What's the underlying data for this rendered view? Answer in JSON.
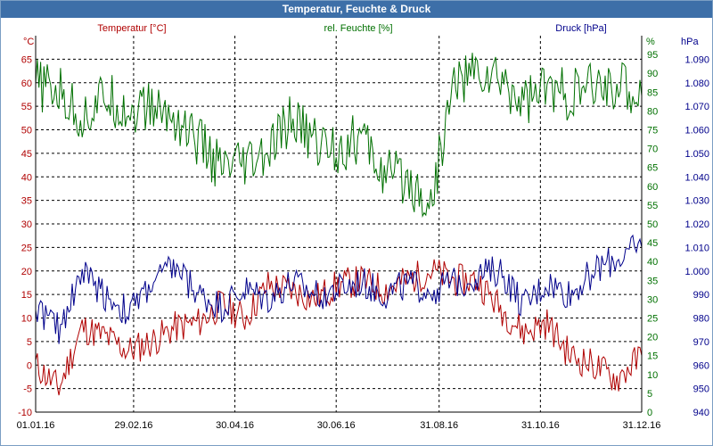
{
  "window": {
    "title": "Temperatur, Feuchte & Druck"
  },
  "colors": {
    "temperature": "#b00000",
    "humidity": "#007000",
    "pressure": "#00008b",
    "grid": "#000000",
    "titlebar": "#3d6fa8"
  },
  "chart_data": {
    "type": "line",
    "title": "Temperatur, Feuchte & Druck",
    "grid": true,
    "x_ticks": [
      "01.01.16",
      "29.02.16",
      "30.04.16",
      "30.06.16",
      "31.08.16",
      "31.10.16",
      "31.12.16"
    ],
    "x_range": [
      "01.01.16",
      "31.12.16"
    ],
    "axes": {
      "temperature": {
        "label": "Temperatur [°C]",
        "unit": "°C",
        "range": [
          -10,
          70
        ],
        "ticks": [
          -10,
          -5,
          0,
          5,
          10,
          15,
          20,
          25,
          30,
          35,
          40,
          45,
          50,
          55,
          60,
          65
        ]
      },
      "humidity": {
        "label": "rel. Feuchte [%]",
        "unit": "%",
        "range": [
          0,
          100
        ],
        "ticks": [
          0,
          5,
          10,
          15,
          20,
          25,
          30,
          35,
          40,
          45,
          50,
          55,
          60,
          65,
          70,
          75,
          80,
          85,
          90,
          95
        ]
      },
      "pressure": {
        "label": "Druck [hPa]",
        "unit": "hPa",
        "range": [
          940,
          1100
        ],
        "ticks": [
          "940",
          "950",
          "960",
          "970",
          "980",
          "990",
          "1.000",
          "1.010",
          "1.020",
          "1.030",
          "1.040",
          "1.050",
          "1.060",
          "1.070",
          "1.080",
          "1.090"
        ]
      }
    },
    "series": [
      {
        "name": "Temperatur [°C]",
        "axis": "temperature",
        "x": [
          "01.01.16",
          "15.01.16",
          "29.01.16",
          "12.02.16",
          "26.02.16",
          "11.03.16",
          "25.03.16",
          "08.04.16",
          "22.04.16",
          "06.05.16",
          "20.05.16",
          "03.06.16",
          "17.06.16",
          "01.07.16",
          "15.07.16",
          "29.07.16",
          "12.08.16",
          "26.08.16",
          "09.09.16",
          "23.09.16",
          "07.10.16",
          "21.10.16",
          "04.11.16",
          "18.11.16",
          "02.12.16",
          "16.12.16",
          "31.12.16"
        ],
        "values": [
          0,
          -5,
          8,
          6,
          3,
          5,
          8,
          9,
          13,
          10,
          17,
          16,
          14,
          17,
          18,
          16,
          18,
          20,
          18,
          18,
          12,
          7,
          9,
          2,
          0,
          -3,
          2
        ]
      },
      {
        "name": "rel. Feuchte [%]",
        "axis": "humidity",
        "x": [
          "01.01.16",
          "15.01.16",
          "29.01.16",
          "12.02.16",
          "26.02.16",
          "11.03.16",
          "25.03.16",
          "08.04.16",
          "22.04.16",
          "06.05.16",
          "20.05.16",
          "03.06.16",
          "17.06.16",
          "01.07.16",
          "15.07.16",
          "29.07.16",
          "12.08.16",
          "26.08.16",
          "09.09.16",
          "23.09.16",
          "07.10.16",
          "21.10.16",
          "04.11.16",
          "18.11.16",
          "02.12.16",
          "16.12.16",
          "31.12.16"
        ],
        "values": [
          87,
          85,
          78,
          84,
          80,
          81,
          78,
          72,
          64,
          65,
          68,
          78,
          72,
          70,
          73,
          63,
          62,
          55,
          88,
          90,
          88,
          83,
          86,
          84,
          86,
          87,
          84
        ]
      },
      {
        "name": "Druck [hPa]",
        "axis": "pressure",
        "x": [
          "01.01.16",
          "15.01.16",
          "29.01.16",
          "12.02.16",
          "26.02.16",
          "11.03.16",
          "25.03.16",
          "08.04.16",
          "22.04.16",
          "06.05.16",
          "20.05.16",
          "03.06.16",
          "17.06.16",
          "01.07.16",
          "15.07.16",
          "29.07.16",
          "12.08.16",
          "26.08.16",
          "09.09.16",
          "23.09.16",
          "07.10.16",
          "21.10.16",
          "04.11.16",
          "18.11.16",
          "02.12.16",
          "16.12.16",
          "31.12.16"
        ],
        "values": [
          985,
          975,
          1000,
          990,
          982,
          995,
          1002,
          990,
          985,
          992,
          988,
          995,
          990,
          992,
          995,
          990,
          994,
          992,
          995,
          998,
          1000,
          985,
          995,
          990,
          1000,
          1005,
          1010
        ]
      }
    ]
  }
}
